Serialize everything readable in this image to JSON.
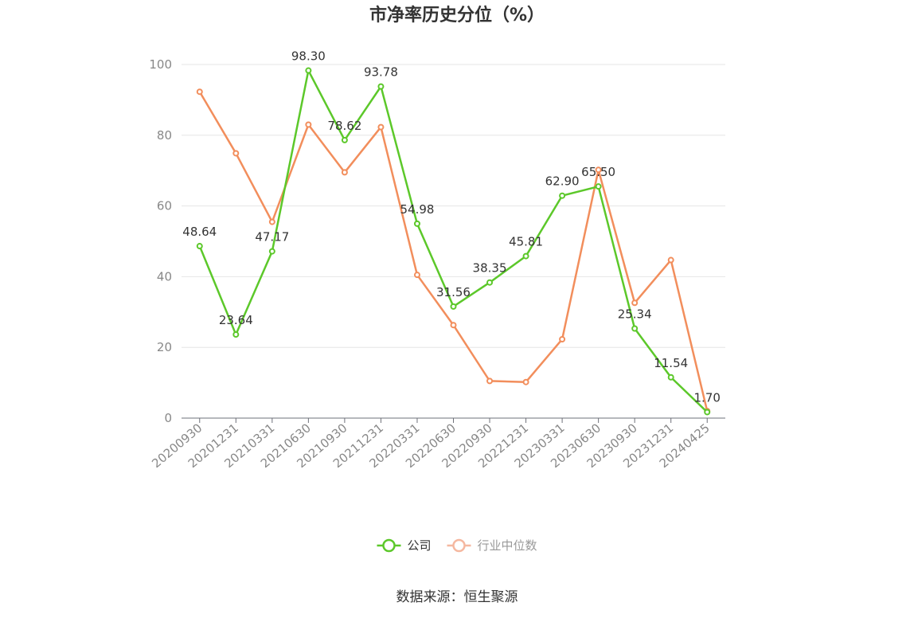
{
  "source_label": "数据来源：恒生聚源",
  "chart_data": {
    "type": "line",
    "title": "市净率历史分位（%）",
    "xlabel": "",
    "ylabel": "",
    "ylim": [
      0,
      100
    ],
    "yticks": [
      0,
      20,
      40,
      60,
      80,
      100
    ],
    "grid": true,
    "legend_position": "bottom",
    "categories": [
      "20200930",
      "20201231",
      "20210331",
      "20210630",
      "20210930",
      "20211231",
      "20220331",
      "20220630",
      "20220930",
      "20221231",
      "20230331",
      "20230630",
      "20230930",
      "20231231",
      "20240425"
    ],
    "series": [
      {
        "name": "公司",
        "color": "#5cc82a",
        "show_labels": true,
        "values": [
          48.64,
          23.64,
          47.17,
          98.3,
          78.62,
          93.78,
          54.98,
          31.56,
          38.35,
          45.81,
          62.9,
          65.5,
          25.34,
          11.54,
          1.7
        ],
        "labels": [
          "48.64",
          "23.64",
          "47.17",
          "98.30",
          "78.62",
          "93.78",
          "54.98",
          "31.56",
          "38.35",
          "45.81",
          "62.90",
          "65.50",
          "25.34",
          "11.54",
          "1.70"
        ]
      },
      {
        "name": "行业中位数",
        "color": "#f28e5c",
        "legend_color": "#f5b8a0",
        "show_labels": false,
        "values": [
          92.3,
          74.9,
          55.5,
          83.0,
          69.5,
          82.3,
          40.5,
          26.3,
          10.5,
          10.2,
          22.3,
          70.2,
          32.6,
          44.7,
          2.0
        ]
      }
    ]
  }
}
